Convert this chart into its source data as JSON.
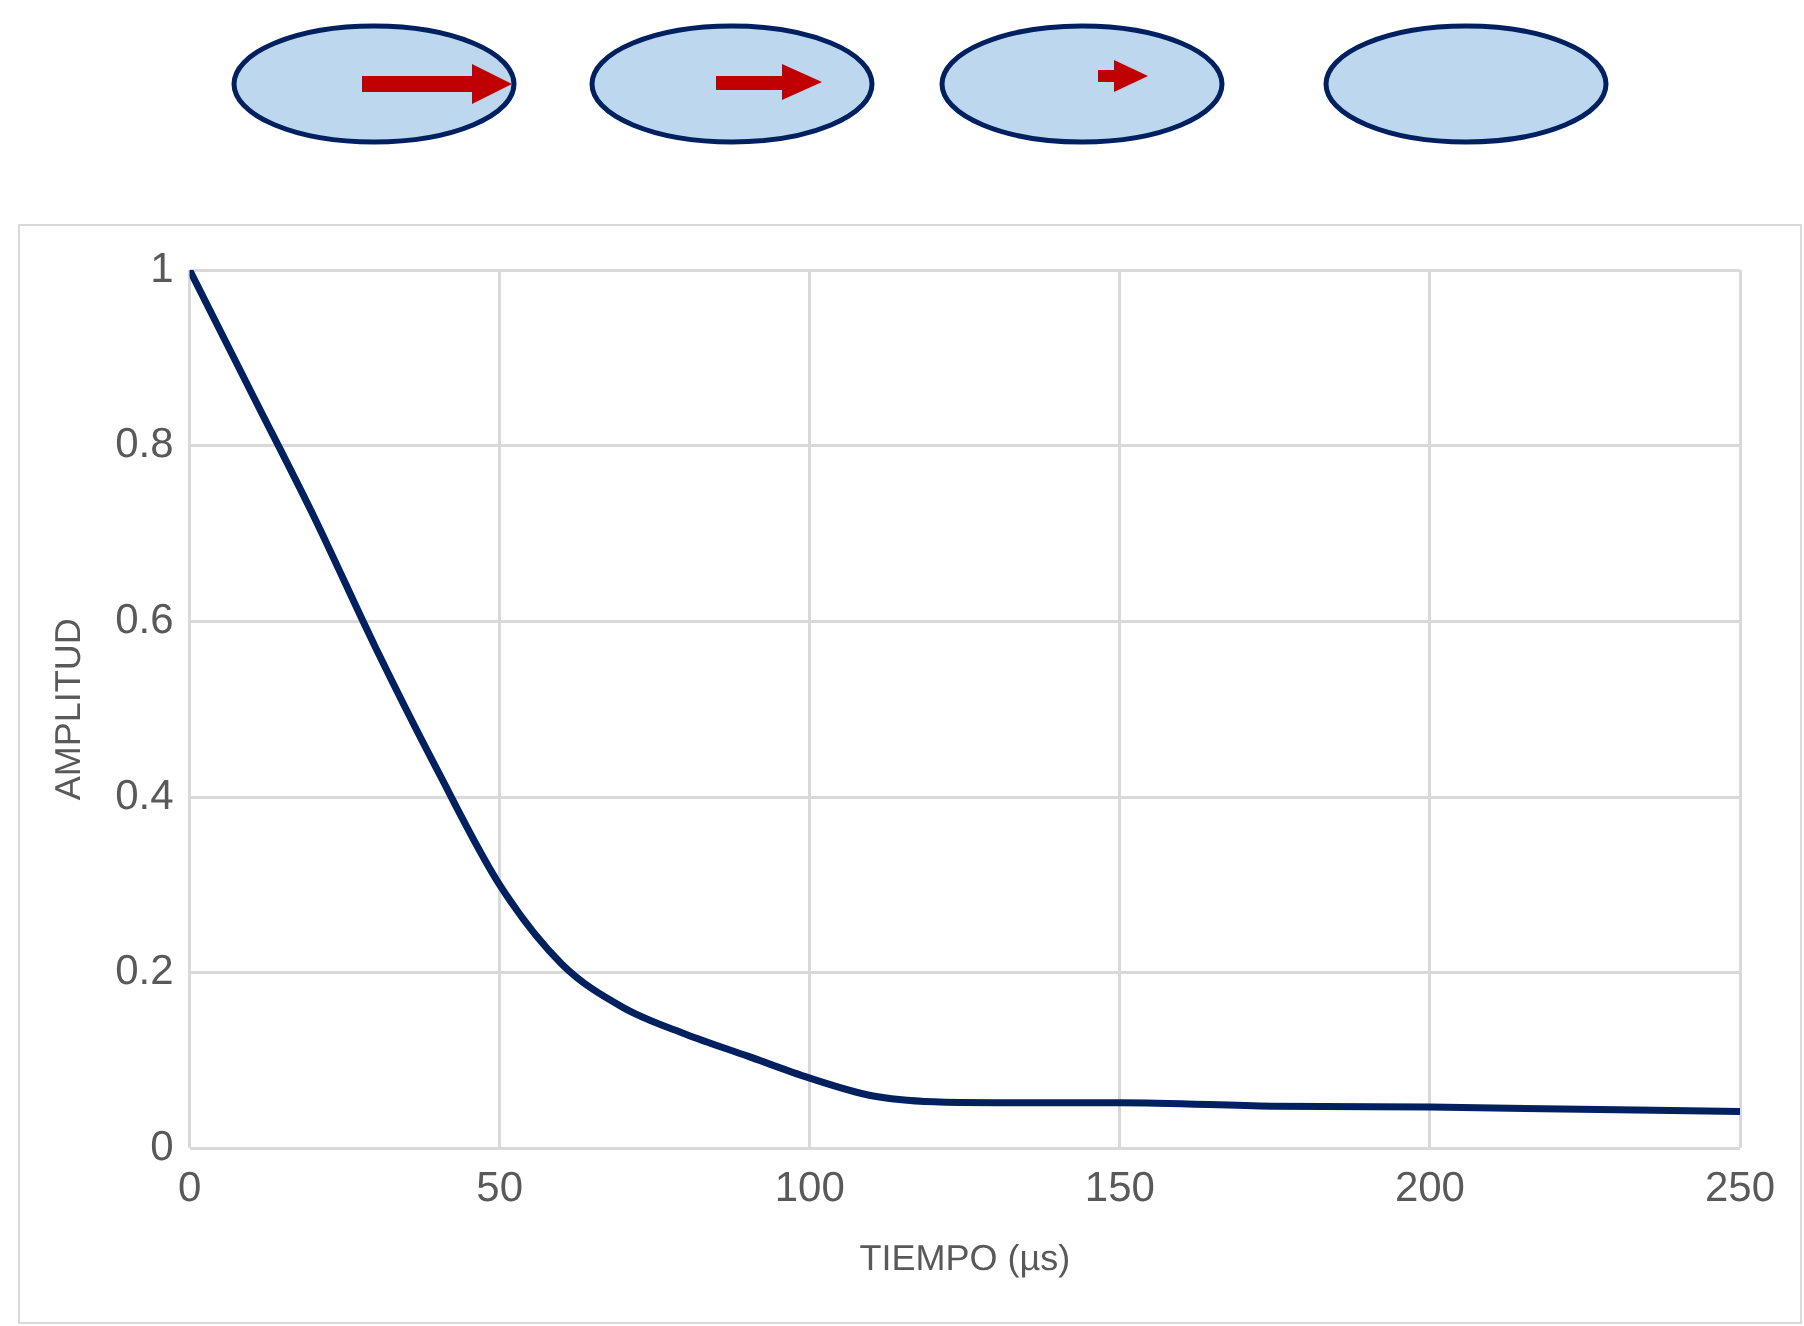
{
  "chart_data": {
    "type": "line",
    "xlabel": "TIEMPO (µs)",
    "ylabel": "AMPLITUD",
    "x": [
      0,
      10,
      20,
      30,
      40,
      50,
      60,
      70,
      80,
      90,
      100,
      110,
      120,
      130,
      150,
      175,
      200,
      250
    ],
    "series": [
      {
        "color": "#002060",
        "values": [
          1,
          0.86,
          0.72,
          0.57,
          0.43,
          0.3,
          0.21,
          0.16,
          0.13,
          0.105,
          0.08,
          0.06,
          0.053,
          0.052,
          0.052,
          0.048,
          0.047,
          0.042
        ]
      }
    ],
    "xlim": [
      0,
      250
    ],
    "xticks": [
      0,
      50,
      100,
      150,
      200,
      250
    ],
    "ylim": [
      0,
      1
    ],
    "yticks": [
      0,
      0.2,
      0.4,
      0.6,
      0.8,
      1
    ],
    "grid": true,
    "legend": false,
    "marker": "none",
    "line_style": "solid"
  }
}
